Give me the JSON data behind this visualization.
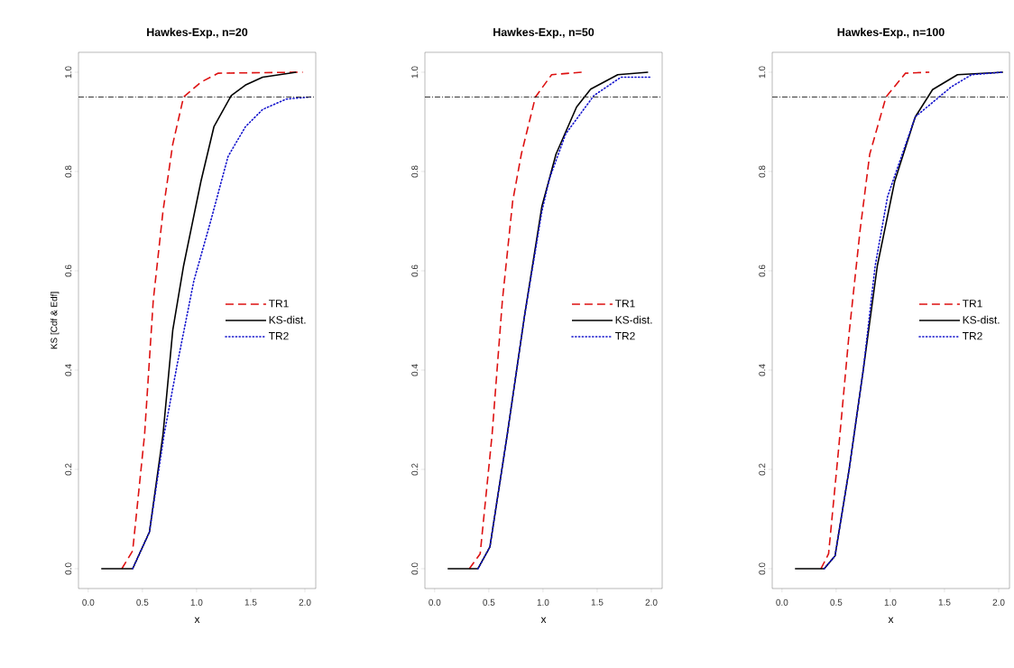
{
  "chart_data": [
    {
      "type": "line",
      "title": "Hawkes-Exp., n=20",
      "xlabel": "x",
      "ylabel": "KS [Cdf & Edf]",
      "xlim": [
        -0.09,
        2.1
      ],
      "ylim": [
        -0.04,
        1.04
      ],
      "xticks": [
        {
          "value": 0,
          "label": "0.0"
        },
        {
          "value": 0.5,
          "label": "0.5"
        },
        {
          "value": 1,
          "label": "1.0"
        },
        {
          "value": 1.5,
          "label": "1.5"
        },
        {
          "value": 2,
          "label": "2.0"
        }
      ],
      "yticks": [
        {
          "value": 0,
          "label": "0.0"
        },
        {
          "value": 0.2,
          "label": "0.2"
        },
        {
          "value": 0.4,
          "label": "0.4"
        },
        {
          "value": 0.6,
          "label": "0.6"
        },
        {
          "value": 0.8,
          "label": "0.8"
        },
        {
          "value": 1,
          "label": "1.0"
        }
      ],
      "legend": "right",
      "grid": false,
      "marker": "none",
      "ref_lines": [
        {
          "axis": "y",
          "value": 0.95,
          "color": "#000000",
          "line_style": "dashdot"
        }
      ],
      "series": [
        {
          "name": "TR1",
          "color": "#dd1111",
          "line_style": "dashed",
          "x": [
            0.31,
            0.41,
            0.52,
            0.6,
            0.69,
            0.78,
            0.88,
            1.04,
            1.2,
            1.98
          ],
          "values": [
            0,
            0.036,
            0.27,
            0.54,
            0.72,
            0.855,
            0.95,
            0.98,
            0.998,
            1.0
          ]
        },
        {
          "name": "KS-dist.",
          "color": "#000000",
          "line_style": "solid",
          "x": [
            0.12,
            0.41,
            0.565,
            0.69,
            0.78,
            0.88,
            1.04,
            1.16,
            1.32,
            1.45,
            1.61,
            1.92
          ],
          "values": [
            0,
            0,
            0.074,
            0.27,
            0.48,
            0.61,
            0.78,
            0.89,
            0.953,
            0.974,
            0.99,
            1.0
          ]
        },
        {
          "name": "TR2",
          "color": "#1111cc",
          "line_style": "dotted",
          "x": [
            0.41,
            0.565,
            0.7,
            0.82,
            0.975,
            1.13,
            1.29,
            1.45,
            1.61,
            1.83,
            2.05
          ],
          "values": [
            0,
            0.074,
            0.27,
            0.41,
            0.58,
            0.7,
            0.83,
            0.89,
            0.925,
            0.946,
            0.95
          ]
        }
      ]
    },
    {
      "type": "line",
      "title": "Hawkes-Exp., n=50",
      "xlabel": "x",
      "xlim": [
        -0.09,
        2.1
      ],
      "ylim": [
        -0.04,
        1.04
      ],
      "xticks": [
        {
          "value": 0,
          "label": "0.0"
        },
        {
          "value": 0.5,
          "label": "0.5"
        },
        {
          "value": 1,
          "label": "1.0"
        },
        {
          "value": 1.5,
          "label": "1.5"
        },
        {
          "value": 2,
          "label": "2.0"
        }
      ],
      "yticks": [
        {
          "value": 0,
          "label": "0.0"
        },
        {
          "value": 0.2,
          "label": "0.2"
        },
        {
          "value": 0.4,
          "label": "0.4"
        },
        {
          "value": 0.6,
          "label": "0.6"
        },
        {
          "value": 0.8,
          "label": "0.8"
        },
        {
          "value": 1,
          "label": "1.0"
        }
      ],
      "legend": "right",
      "grid": false,
      "marker": "none",
      "ref_lines": [
        {
          "axis": "y",
          "value": 0.95,
          "color": "#000000",
          "line_style": "dashdot"
        }
      ],
      "series": [
        {
          "name": "TR1",
          "color": "#dd1111",
          "line_style": "dashed",
          "x": [
            0.32,
            0.42,
            0.53,
            0.625,
            0.72,
            0.8,
            0.93,
            1.08,
            1.36
          ],
          "values": [
            0,
            0.03,
            0.27,
            0.54,
            0.74,
            0.835,
            0.95,
            0.995,
            1.0
          ]
        },
        {
          "name": "KS-dist.",
          "color": "#000000",
          "line_style": "solid",
          "x": [
            0.12,
            0.4,
            0.51,
            0.67,
            0.83,
            0.99,
            1.12,
            1.31,
            1.44,
            1.69,
            1.97
          ],
          "values": [
            0,
            0,
            0.044,
            0.27,
            0.51,
            0.73,
            0.835,
            0.93,
            0.966,
            0.995,
            1.0
          ]
        },
        {
          "name": "TR2",
          "color": "#1111cc",
          "line_style": "dotted",
          "x": [
            0.4,
            0.51,
            0.67,
            0.83,
            0.99,
            1.06,
            1.21,
            1.47,
            1.72,
            1.99
          ],
          "values": [
            0,
            0.044,
            0.27,
            0.51,
            0.72,
            0.786,
            0.876,
            0.953,
            0.99,
            0.99
          ]
        }
      ]
    },
    {
      "type": "line",
      "title": "Hawkes-Exp., n=100",
      "xlabel": "x",
      "xlim": [
        -0.09,
        2.1
      ],
      "ylim": [
        -0.04,
        1.04
      ],
      "xticks": [
        {
          "value": 0,
          "label": "0.0"
        },
        {
          "value": 0.5,
          "label": "0.5"
        },
        {
          "value": 1,
          "label": "1.0"
        },
        {
          "value": 1.5,
          "label": "1.5"
        },
        {
          "value": 2,
          "label": "2.0"
        }
      ],
      "yticks": [
        {
          "value": 0,
          "label": "0.0"
        },
        {
          "value": 0.2,
          "label": "0.2"
        },
        {
          "value": 0.4,
          "label": "0.4"
        },
        {
          "value": 0.6,
          "label": "0.6"
        },
        {
          "value": 0.8,
          "label": "0.8"
        },
        {
          "value": 1,
          "label": "1.0"
        }
      ],
      "legend": "right",
      "grid": false,
      "marker": "none",
      "ref_lines": [
        {
          "axis": "y",
          "value": 0.95,
          "color": "#000000",
          "line_style": "dashdot"
        }
      ],
      "series": [
        {
          "name": "TR1",
          "color": "#dd1111",
          "line_style": "dashed",
          "x": [
            0.36,
            0.43,
            0.52,
            0.62,
            0.72,
            0.81,
            0.96,
            1.14,
            1.36
          ],
          "values": [
            0,
            0.03,
            0.235,
            0.475,
            0.68,
            0.835,
            0.95,
            0.998,
            1.0
          ]
        },
        {
          "name": "KS-dist.",
          "color": "#000000",
          "line_style": "solid",
          "x": [
            0.12,
            0.39,
            0.49,
            0.62,
            0.75,
            0.88,
            1.04,
            1.23,
            1.39,
            1.62,
            2.04
          ],
          "values": [
            0,
            0,
            0.026,
            0.2,
            0.4,
            0.61,
            0.78,
            0.91,
            0.965,
            0.995,
            1.0
          ]
        },
        {
          "name": "TR2",
          "color": "#1111cc",
          "line_style": "dotted",
          "x": [
            0.39,
            0.49,
            0.62,
            0.75,
            0.86,
            0.975,
            1.23,
            1.56,
            1.75,
            2.04
          ],
          "values": [
            0,
            0.026,
            0.2,
            0.4,
            0.61,
            0.75,
            0.91,
            0.97,
            0.995,
            1.0
          ]
        }
      ]
    }
  ]
}
